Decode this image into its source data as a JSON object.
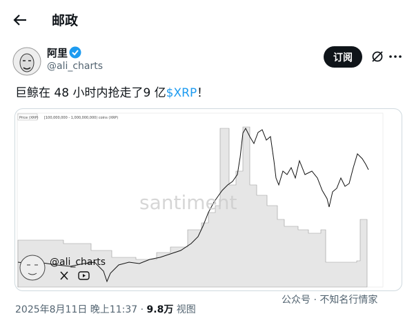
{
  "header": {
    "title": "邮政"
  },
  "author": {
    "name": "阿里",
    "handle": "@ali_charts",
    "subscribe": "订阅"
  },
  "tweet": {
    "text": "巨鲸在 48 小时内抢走了9 亿",
    "cashtag": "$XRP",
    "end": "！"
  },
  "media": {
    "legend_price": "Price (XRP)",
    "legend_holders": "[100,000,000 - 1,000,000,000) coins (XRP)",
    "brand": "santiment",
    "signature": "@ali_charts"
  },
  "footer": {
    "date": "2025年8月11日 晚上11:37",
    "separator": "·",
    "views": "9.8万",
    "views_label": "视图"
  },
  "watermark": "公众号 · 不知名行情家"
}
